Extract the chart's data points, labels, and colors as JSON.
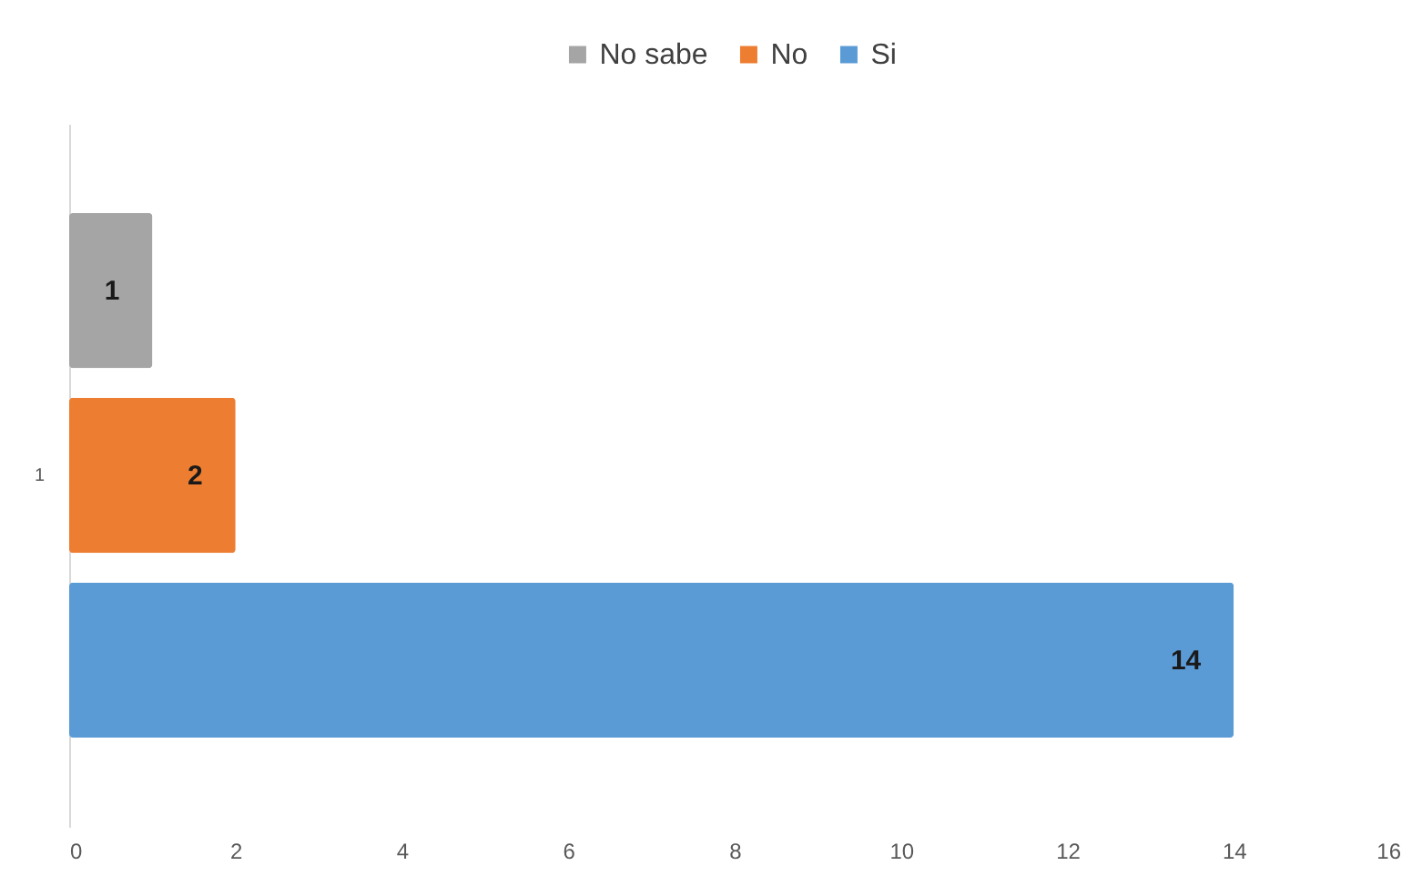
{
  "chart_data": {
    "type": "bar",
    "orientation": "horizontal",
    "categories": [
      "1"
    ],
    "series": [
      {
        "name": "No sabe",
        "color": "#a5a5a5",
        "values": [
          1
        ]
      },
      {
        "name": "No",
        "color": "#ed7d31",
        "values": [
          2
        ]
      },
      {
        "name": "Si",
        "color": "#5b9bd5",
        "values": [
          14
        ]
      }
    ],
    "xlim": [
      0,
      16
    ],
    "xticks": [
      0,
      2,
      4,
      6,
      8,
      10,
      12,
      14,
      16
    ],
    "legend": "top",
    "data_labels": true
  }
}
